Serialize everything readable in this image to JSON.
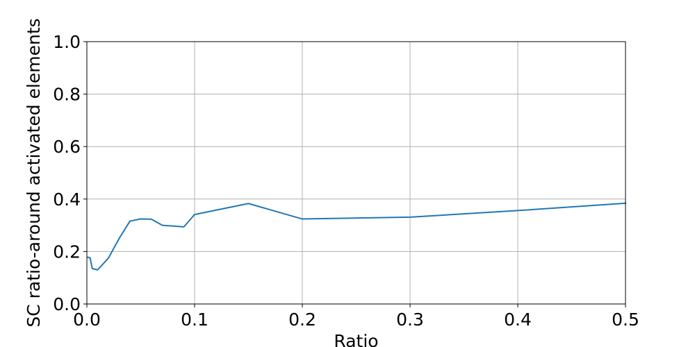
{
  "chart_data": {
    "type": "line",
    "title": "",
    "xlabel": "Ratio",
    "ylabel": "SC ratio-around activated elements",
    "xlim": [
      0.0,
      0.5
    ],
    "ylim": [
      0.0,
      1.0
    ],
    "grid": true,
    "xticks": [
      0.0,
      0.1,
      0.2,
      0.3,
      0.4,
      0.5
    ],
    "xtick_labels": [
      "0.0",
      "0.1",
      "0.2",
      "0.3",
      "0.4",
      "0.5"
    ],
    "yticks": [
      0.0,
      0.2,
      0.4,
      0.6,
      0.8,
      1.0
    ],
    "ytick_labels": [
      "0.0",
      "0.2",
      "0.4",
      "0.6",
      "0.8",
      "1.0"
    ],
    "series": [
      {
        "color": "#1f77b4",
        "x": [
          0.001,
          0.003,
          0.005,
          0.01,
          0.02,
          0.03,
          0.04,
          0.05,
          0.06,
          0.07,
          0.08,
          0.09,
          0.1,
          0.15,
          0.2,
          0.3,
          0.4,
          0.5
        ],
        "y": [
          0.178,
          0.176,
          0.135,
          0.13,
          0.175,
          0.25,
          0.316,
          0.324,
          0.323,
          0.3,
          0.297,
          0.294,
          0.341,
          0.383,
          0.324,
          0.331,
          0.356,
          0.384
        ]
      }
    ]
  }
}
